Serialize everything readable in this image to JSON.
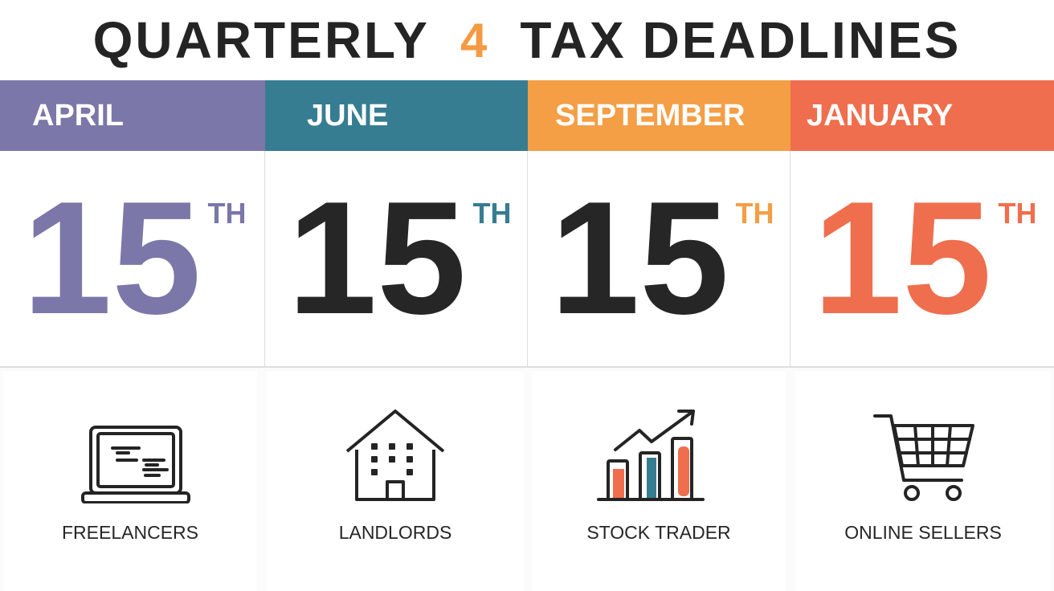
{
  "title": {
    "word1": "QUARTERLY",
    "number": "4",
    "word2": "TAX",
    "word3": "DEADLINES",
    "number_color": "#f49a42"
  },
  "deadlines": [
    {
      "month": "APRIL",
      "day": "15",
      "suffix": "TH",
      "color": "#7b77a8",
      "day_color": "#7b77a8"
    },
    {
      "month": "JUNE",
      "day": "15",
      "suffix": "TH",
      "color": "#377d92",
      "day_color": "#262626"
    },
    {
      "month": "SEPTEMBER",
      "day": "15",
      "suffix": "TH",
      "color": "#f49e45",
      "day_color": "#262626"
    },
    {
      "month": "JANUARY",
      "day": "15",
      "suffix": "TH",
      "color": "#ef6e4d",
      "day_color": "#ef6e4d"
    }
  ],
  "categories": [
    {
      "label": "FREELANCERS",
      "icon": "laptop-icon"
    },
    {
      "label": "LANDLORDS",
      "icon": "house-icon"
    },
    {
      "label": "STOCK TRADER",
      "icon": "stock-chart-icon"
    },
    {
      "label": "ONLINE SELLERS",
      "icon": "shopping-cart-icon"
    }
  ]
}
